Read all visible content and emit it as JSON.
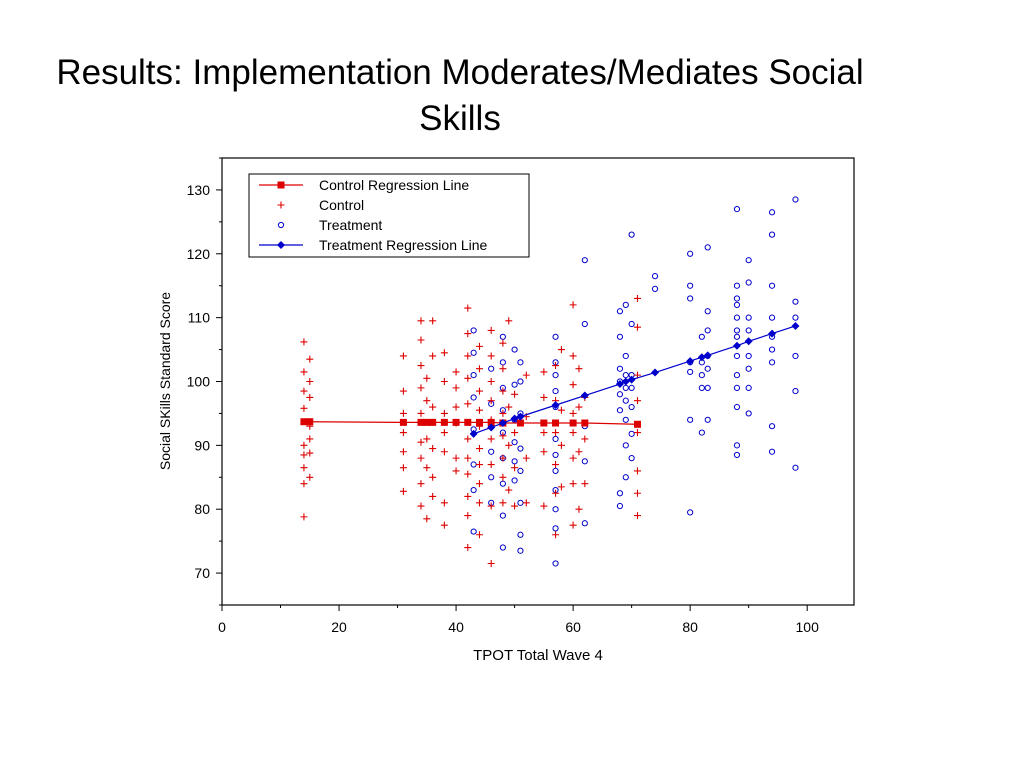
{
  "slide": {
    "title_line1": "Results: Implementation Moderates/Mediates Social",
    "title_line2": "Skills"
  },
  "chart_data": {
    "type": "scatter",
    "xlabel": "TPOT Total Wave 4",
    "ylabel": "Social SKills Standard Score",
    "xlim": [
      0,
      108
    ],
    "ylim": [
      65,
      135
    ],
    "xticks": [
      0,
      20,
      40,
      60,
      80,
      100
    ],
    "yticks": [
      70,
      80,
      90,
      100,
      110,
      120,
      130
    ],
    "legend_position": "top-left",
    "grid": false,
    "colors": {
      "control": "#dd0000",
      "treatment": "#0000cc"
    },
    "series": [
      {
        "name": "Control Regression Line",
        "kind": "line",
        "marker": "square",
        "points": [
          [
            14,
            93.7
          ],
          [
            15,
            93.7
          ],
          [
            31,
            93.6
          ],
          [
            34,
            93.6
          ],
          [
            35,
            93.6
          ],
          [
            36,
            93.6
          ],
          [
            38,
            93.6
          ],
          [
            40,
            93.6
          ],
          [
            42,
            93.6
          ],
          [
            44,
            93.6
          ],
          [
            46,
            93.6
          ],
          [
            48,
            93.5
          ],
          [
            51,
            93.5
          ],
          [
            55,
            93.5
          ],
          [
            57,
            93.5
          ],
          [
            60,
            93.5
          ],
          [
            62,
            93.5
          ],
          [
            71,
            93.3
          ]
        ]
      },
      {
        "name": "Control",
        "kind": "scatter",
        "marker": "plus",
        "points": [
          [
            14,
            78.8
          ],
          [
            14,
            84
          ],
          [
            14,
            86.5
          ],
          [
            14,
            88.5
          ],
          [
            14,
            90
          ],
          [
            14,
            95.8
          ],
          [
            14,
            98.5
          ],
          [
            14,
            101.5
          ],
          [
            14,
            106.2
          ],
          [
            15,
            85
          ],
          [
            15,
            88.8
          ],
          [
            15,
            91
          ],
          [
            15,
            93
          ],
          [
            15,
            97.5
          ],
          [
            15,
            100
          ],
          [
            15,
            103.5
          ],
          [
            31,
            82.8
          ],
          [
            31,
            86.5
          ],
          [
            31,
            89
          ],
          [
            31,
            92
          ],
          [
            31,
            95
          ],
          [
            31,
            98.5
          ],
          [
            31,
            104
          ],
          [
            34,
            80.5
          ],
          [
            34,
            84
          ],
          [
            34,
            88
          ],
          [
            34,
            90.5
          ],
          [
            34,
            95
          ],
          [
            34,
            99
          ],
          [
            34,
            102.5
          ],
          [
            34,
            106.5
          ],
          [
            34,
            109.5
          ],
          [
            35,
            78.5
          ],
          [
            35,
            86.5
          ],
          [
            35,
            91
          ],
          [
            35,
            97
          ],
          [
            35,
            100.5
          ],
          [
            36,
            82
          ],
          [
            36,
            85
          ],
          [
            36,
            89.5
          ],
          [
            36,
            96
          ],
          [
            36,
            104
          ],
          [
            36,
            109.5
          ],
          [
            38,
            77.5
          ],
          [
            38,
            81
          ],
          [
            38,
            89
          ],
          [
            38,
            92
          ],
          [
            38,
            95
          ],
          [
            38,
            100
          ],
          [
            38,
            104.5
          ],
          [
            40,
            86
          ],
          [
            40,
            88
          ],
          [
            40,
            93.5
          ],
          [
            40,
            96
          ],
          [
            40,
            99
          ],
          [
            40,
            101.5
          ],
          [
            42,
            74
          ],
          [
            42,
            79
          ],
          [
            42,
            82
          ],
          [
            42,
            85.5
          ],
          [
            42,
            88
          ],
          [
            42,
            91
          ],
          [
            42,
            96.5
          ],
          [
            42,
            100.5
          ],
          [
            42,
            104
          ],
          [
            42,
            107.5
          ],
          [
            42,
            111.5
          ],
          [
            44,
            76
          ],
          [
            44,
            81
          ],
          [
            44,
            84
          ],
          [
            44,
            87
          ],
          [
            44,
            89.5
          ],
          [
            44,
            93
          ],
          [
            44,
            95.5
          ],
          [
            44,
            98.5
          ],
          [
            44,
            102
          ],
          [
            44,
            105.5
          ],
          [
            46,
            71.5
          ],
          [
            46,
            80.5
          ],
          [
            46,
            87
          ],
          [
            46,
            91
          ],
          [
            46,
            94
          ],
          [
            46,
            97
          ],
          [
            46,
            100
          ],
          [
            46,
            104
          ],
          [
            46,
            108
          ],
          [
            48,
            81
          ],
          [
            48,
            85
          ],
          [
            48,
            88
          ],
          [
            48,
            91.5
          ],
          [
            48,
            95
          ],
          [
            48,
            98.5
          ],
          [
            48,
            102
          ],
          [
            48,
            106
          ],
          [
            49,
            83
          ],
          [
            49,
            90
          ],
          [
            49,
            96
          ],
          [
            49,
            109.5
          ],
          [
            50,
            80.5
          ],
          [
            50,
            86.5
          ],
          [
            50,
            92
          ],
          [
            50,
            98
          ],
          [
            52,
            81
          ],
          [
            52,
            88
          ],
          [
            52,
            94.5
          ],
          [
            52,
            101
          ],
          [
            55,
            80.5
          ],
          [
            55,
            89
          ],
          [
            55,
            92
          ],
          [
            55,
            97.5
          ],
          [
            55,
            101.5
          ],
          [
            57,
            76
          ],
          [
            57,
            82.5
          ],
          [
            57,
            87
          ],
          [
            57,
            92
          ],
          [
            57,
            97
          ],
          [
            57,
            102.5
          ],
          [
            58,
            83.5
          ],
          [
            58,
            90
          ],
          [
            58,
            95.5
          ],
          [
            58,
            105
          ],
          [
            60,
            77.5
          ],
          [
            60,
            84
          ],
          [
            60,
            88
          ],
          [
            60,
            92
          ],
          [
            60,
            95
          ],
          [
            60,
            99.5
          ],
          [
            60,
            104
          ],
          [
            60,
            112
          ],
          [
            61,
            80
          ],
          [
            61,
            89
          ],
          [
            61,
            96
          ],
          [
            61,
            102
          ],
          [
            62,
            84
          ],
          [
            62,
            91
          ],
          [
            62,
            97.5
          ],
          [
            71,
            79
          ],
          [
            71,
            82.5
          ],
          [
            71,
            86
          ],
          [
            71,
            92
          ],
          [
            71,
            97
          ],
          [
            71,
            101
          ],
          [
            71,
            108.5
          ],
          [
            71,
            113
          ]
        ]
      },
      {
        "name": "Treatment",
        "kind": "scatter",
        "marker": "circle",
        "points": [
          [
            43,
            76.5
          ],
          [
            43,
            83
          ],
          [
            43,
            87
          ],
          [
            43,
            92.5
          ],
          [
            43,
            97.5
          ],
          [
            43,
            101
          ],
          [
            43,
            104.5
          ],
          [
            43,
            108
          ],
          [
            46,
            81
          ],
          [
            46,
            85
          ],
          [
            46,
            89
          ],
          [
            46,
            93
          ],
          [
            46,
            96.5
          ],
          [
            46,
            102
          ],
          [
            48,
            74
          ],
          [
            48,
            79
          ],
          [
            48,
            84
          ],
          [
            48,
            88
          ],
          [
            48,
            92
          ],
          [
            48,
            95.5
          ],
          [
            48,
            99
          ],
          [
            48,
            103
          ],
          [
            48,
            107
          ],
          [
            50,
            84.5
          ],
          [
            50,
            87.5
          ],
          [
            50,
            90.5
          ],
          [
            50,
            94
          ],
          [
            50,
            99.5
          ],
          [
            50,
            105
          ],
          [
            51,
            73.5
          ],
          [
            51,
            76
          ],
          [
            51,
            81
          ],
          [
            51,
            86
          ],
          [
            51,
            89.5
          ],
          [
            51,
            95
          ],
          [
            51,
            100
          ],
          [
            51,
            103
          ],
          [
            51,
            120
          ],
          [
            57,
            71.5
          ],
          [
            57,
            77
          ],
          [
            57,
            80
          ],
          [
            57,
            83
          ],
          [
            57,
            86
          ],
          [
            57,
            88.5
          ],
          [
            57,
            91
          ],
          [
            57,
            93.5
          ],
          [
            57,
            96
          ],
          [
            57,
            98.5
          ],
          [
            57,
            101
          ],
          [
            57,
            103
          ],
          [
            57,
            107
          ],
          [
            62,
            77.8
          ],
          [
            62,
            87.5
          ],
          [
            62,
            93
          ],
          [
            62,
            109
          ],
          [
            62,
            119
          ],
          [
            68,
            80.5
          ],
          [
            68,
            82.5
          ],
          [
            68,
            95.5
          ],
          [
            68,
            98
          ],
          [
            68,
            100
          ],
          [
            68,
            102
          ],
          [
            68,
            107
          ],
          [
            68,
            111
          ],
          [
            69,
            85
          ],
          [
            69,
            90
          ],
          [
            69,
            94
          ],
          [
            69,
            97
          ],
          [
            69,
            99
          ],
          [
            69,
            101
          ],
          [
            69,
            104
          ],
          [
            69,
            112
          ],
          [
            70,
            88
          ],
          [
            70,
            91.8
          ],
          [
            70,
            96
          ],
          [
            70,
            99
          ],
          [
            70,
            101
          ],
          [
            70,
            109
          ],
          [
            70,
            123
          ],
          [
            74,
            114.5
          ],
          [
            74,
            116.5
          ],
          [
            80,
            79.5
          ],
          [
            80,
            94
          ],
          [
            80,
            101.5
          ],
          [
            80,
            103
          ],
          [
            80,
            113
          ],
          [
            80,
            115
          ],
          [
            80,
            120
          ],
          [
            82,
            92
          ],
          [
            82,
            99
          ],
          [
            82,
            101
          ],
          [
            82,
            103
          ],
          [
            82,
            107
          ],
          [
            83,
            94
          ],
          [
            83,
            99
          ],
          [
            83,
            102
          ],
          [
            83,
            104
          ],
          [
            83,
            108
          ],
          [
            83,
            111
          ],
          [
            83,
            121
          ],
          [
            88,
            88.5
          ],
          [
            88,
            90
          ],
          [
            88,
            96
          ],
          [
            88,
            99
          ],
          [
            88,
            101
          ],
          [
            88,
            104
          ],
          [
            88,
            107
          ],
          [
            88,
            108
          ],
          [
            88,
            110
          ],
          [
            88,
            112
          ],
          [
            88,
            113
          ],
          [
            88,
            115
          ],
          [
            88,
            127
          ],
          [
            90,
            95
          ],
          [
            90,
            99
          ],
          [
            90,
            102
          ],
          [
            90,
            104
          ],
          [
            90,
            108
          ],
          [
            90,
            110
          ],
          [
            90,
            115.5
          ],
          [
            90,
            119
          ],
          [
            94,
            89
          ],
          [
            94,
            93
          ],
          [
            94,
            103
          ],
          [
            94,
            105
          ],
          [
            94,
            107
          ],
          [
            94,
            110
          ],
          [
            94,
            115
          ],
          [
            94,
            123
          ],
          [
            94,
            126.5
          ],
          [
            98,
            86.5
          ],
          [
            98,
            98.5
          ],
          [
            98,
            104
          ],
          [
            98,
            110
          ],
          [
            98,
            112.5
          ],
          [
            98,
            128.5
          ]
        ]
      },
      {
        "name": "Treatment Regression Line",
        "kind": "line",
        "marker": "diamond",
        "points": [
          [
            43,
            91.8
          ],
          [
            46,
            92.8
          ],
          [
            48,
            93.5
          ],
          [
            50,
            94.2
          ],
          [
            51,
            94.5
          ],
          [
            57,
            96.3
          ],
          [
            62,
            97.8
          ],
          [
            68,
            99.6
          ],
          [
            69,
            100
          ],
          [
            70,
            100.3
          ],
          [
            74,
            101.4
          ],
          [
            80,
            103.2
          ],
          [
            82,
            103.8
          ],
          [
            83,
            104.1
          ],
          [
            88,
            105.6
          ],
          [
            90,
            106.3
          ],
          [
            94,
            107.5
          ],
          [
            98,
            108.7
          ]
        ]
      }
    ]
  }
}
